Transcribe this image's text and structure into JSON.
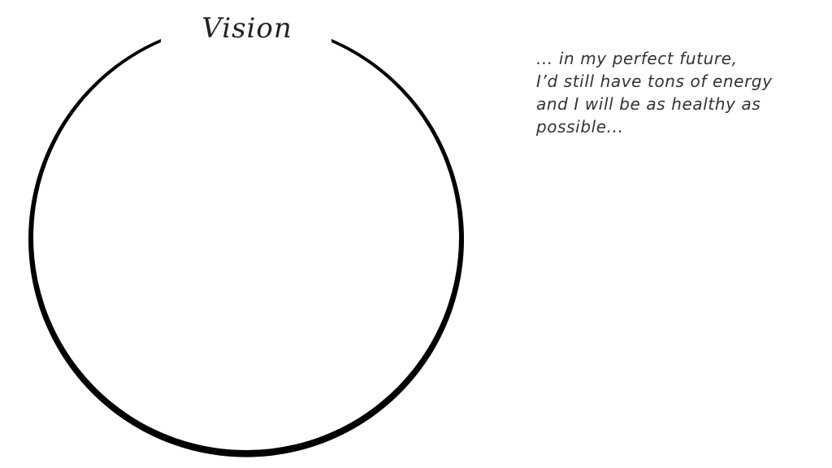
{
  "diagram": {
    "title": "Vision",
    "ring_color": "#000000",
    "text_color": "#333333"
  },
  "quote": {
    "lines": [
      "... in my perfect future,",
      "I’d still have tons of energy",
      "and I will be as healthy as",
      "possible..."
    ]
  }
}
